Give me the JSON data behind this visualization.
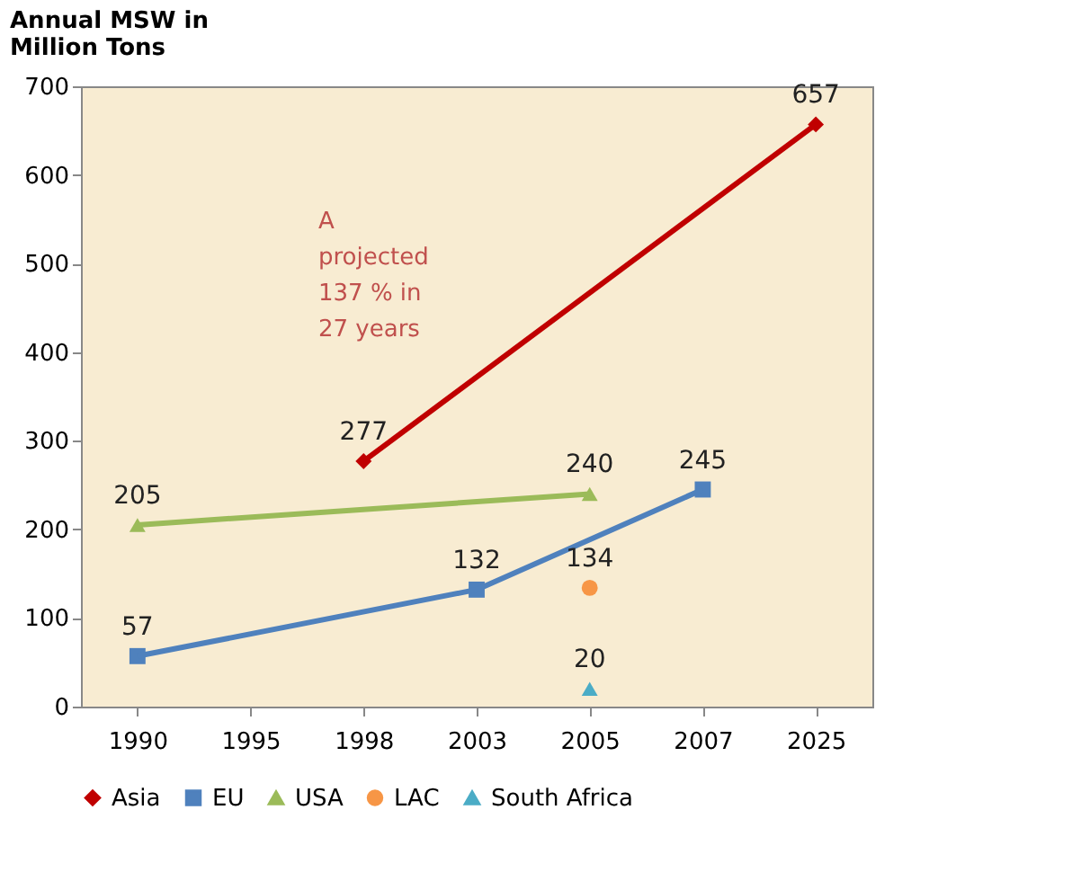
{
  "chart_data": {
    "type": "scatter",
    "ylabel": "Annual MSW in Million Tons",
    "categories": [
      "1990",
      "1995",
      "1998",
      "2003",
      "2005",
      "2007",
      "2025"
    ],
    "series": [
      {
        "name": "Asia",
        "type": "line",
        "marker": "diamond",
        "color": "#c00000",
        "values": [
          null,
          null,
          277,
          null,
          null,
          null,
          657
        ]
      },
      {
        "name": "EU",
        "type": "line",
        "marker": "square",
        "color": "#4f81bd",
        "values": [
          57,
          null,
          null,
          132,
          null,
          245,
          null
        ]
      },
      {
        "name": "USA",
        "type": "line",
        "marker": "triangle",
        "color": "#9bbb59",
        "values": [
          205,
          null,
          null,
          null,
          240,
          null,
          null
        ]
      },
      {
        "name": "LAC",
        "type": "scatter",
        "marker": "circle",
        "color": "#f79646",
        "values": [
          null,
          null,
          null,
          null,
          134,
          null,
          null
        ]
      },
      {
        "name": "South Africa",
        "type": "scatter",
        "marker": "triangle",
        "color": "#4bacc6",
        "values": [
          null,
          null,
          null,
          null,
          20,
          null,
          null
        ]
      }
    ],
    "ylim": [
      0,
      700
    ],
    "yticks": [
      0,
      100,
      200,
      300,
      400,
      500,
      600,
      700
    ],
    "data_labels": true,
    "grid": false,
    "legend": "bottom",
    "annotations": [
      "A projected 137 % in 27 years"
    ]
  }
}
